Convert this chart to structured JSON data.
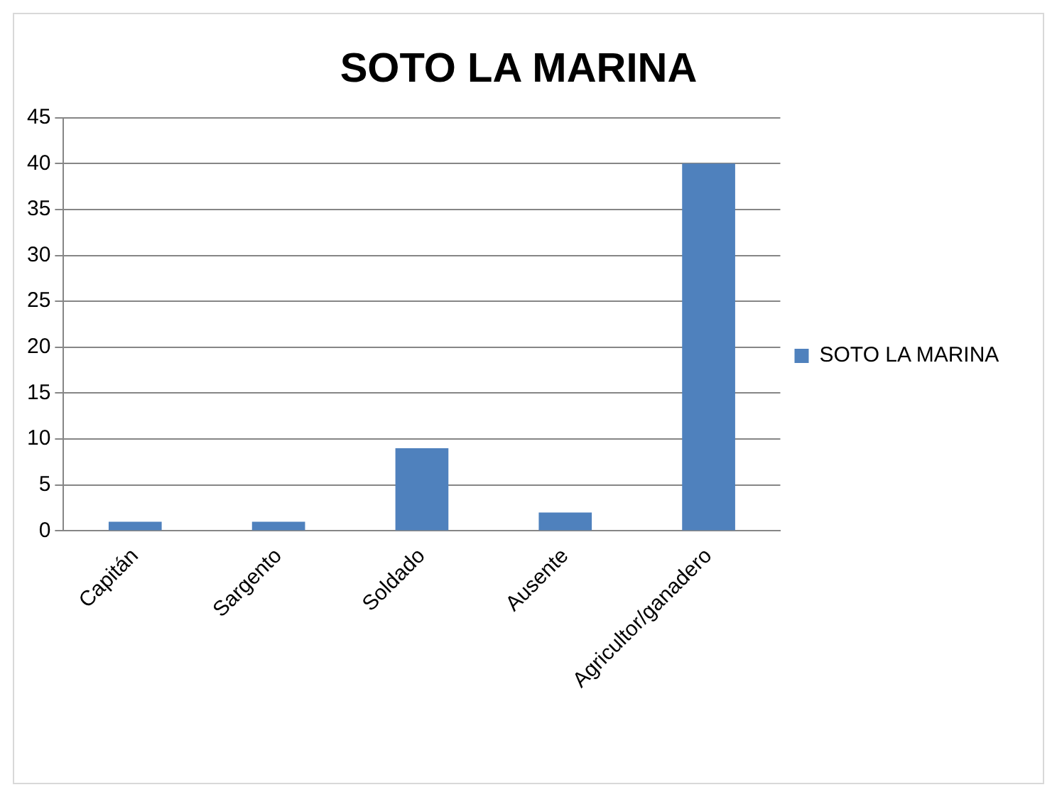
{
  "chart_data": {
    "type": "bar",
    "title": "SOTO LA MARINA",
    "categories": [
      "Capitán",
      "Sargento",
      "Soldado",
      "Ausente",
      "Agricultor/ganadero"
    ],
    "series": [
      {
        "name": "SOTO LA MARINA",
        "color": "#4f81bd",
        "values": [
          1,
          1,
          9,
          2,
          40
        ]
      }
    ],
    "ylim": [
      0,
      45
    ],
    "yticks": [
      0,
      5,
      10,
      15,
      20,
      25,
      30,
      35,
      40,
      45
    ],
    "grid": "y",
    "legend": "right"
  }
}
